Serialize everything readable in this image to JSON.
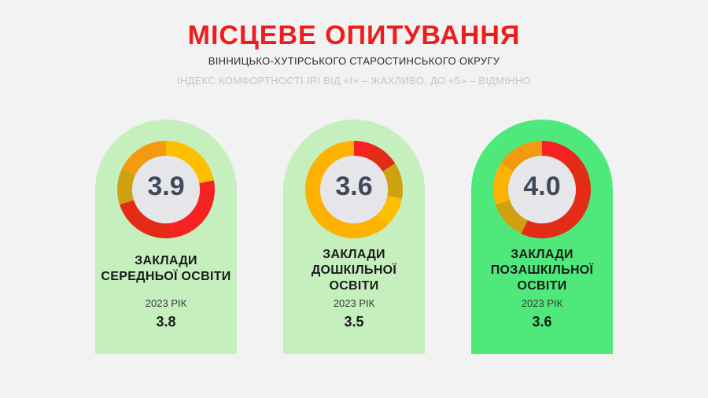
{
  "header": {
    "title": "МІСЦЕВЕ ОПИТУВАННЯ",
    "subtitle": "ВІННИЦЬКО-ХУТІРСЬКОГО СТАРОСТИНСЬКОГО ОКРУГУ",
    "scale_note": "ІНДЕКС КОМФОРТНОСТІ IRI ВІД «І» – ЖАХЛИВО, ДО «5» – ВІДМІННО"
  },
  "colors": {
    "title": "#ee1c1c",
    "card_light": "#c6efbe",
    "card_bright": "#4fe97b",
    "score_text": "#3f4957",
    "donut_center": "#e6e6ea"
  },
  "cards": [
    {
      "score": "3.9",
      "label_lines": [
        "ЗАКЛАДИ",
        "СЕРЕДНЬОЇ ОСВІТИ"
      ],
      "year_label": "2023 РІК",
      "prev_score": "3.8",
      "segments": [
        {
          "color": "#fdbf00",
          "share": 0.22
        },
        {
          "color": "#f72121",
          "share": 0.26
        },
        {
          "color": "#e32b16",
          "share": 0.22
        },
        {
          "color": "#cfa010",
          "share": 0.12
        },
        {
          "color": "#f39a12",
          "share": 0.18
        }
      ]
    },
    {
      "score": "3.6",
      "label_lines": [
        "ЗАКЛАДИ",
        "ДОШКІЛЬНОЇ",
        "ОСВІТИ"
      ],
      "year_label": "2023 РІК",
      "prev_score": "3.5",
      "segments": [
        {
          "color": "#f72121",
          "share": 0.06
        },
        {
          "color": "#e32b16",
          "share": 0.1
        },
        {
          "color": "#cfa010",
          "share": 0.12
        },
        {
          "color": "#fdbf00",
          "share": 0.1
        },
        {
          "color": "#fdb100",
          "share": 0.62
        }
      ]
    },
    {
      "score": "4.0",
      "label_lines": [
        "ЗАКЛАДИ",
        "ПОЗАШКІЛЬНОЇ",
        "ОСВІТИ"
      ],
      "year_label": "2023 РІК",
      "prev_score": "3.6",
      "segments": [
        {
          "color": "#f72121",
          "share": 0.12
        },
        {
          "color": "#e32b16",
          "share": 0.45
        },
        {
          "color": "#cfa010",
          "share": 0.13
        },
        {
          "color": "#fdb100",
          "share": 0.14
        },
        {
          "color": "#f39a12",
          "share": 0.16
        }
      ]
    }
  ]
}
